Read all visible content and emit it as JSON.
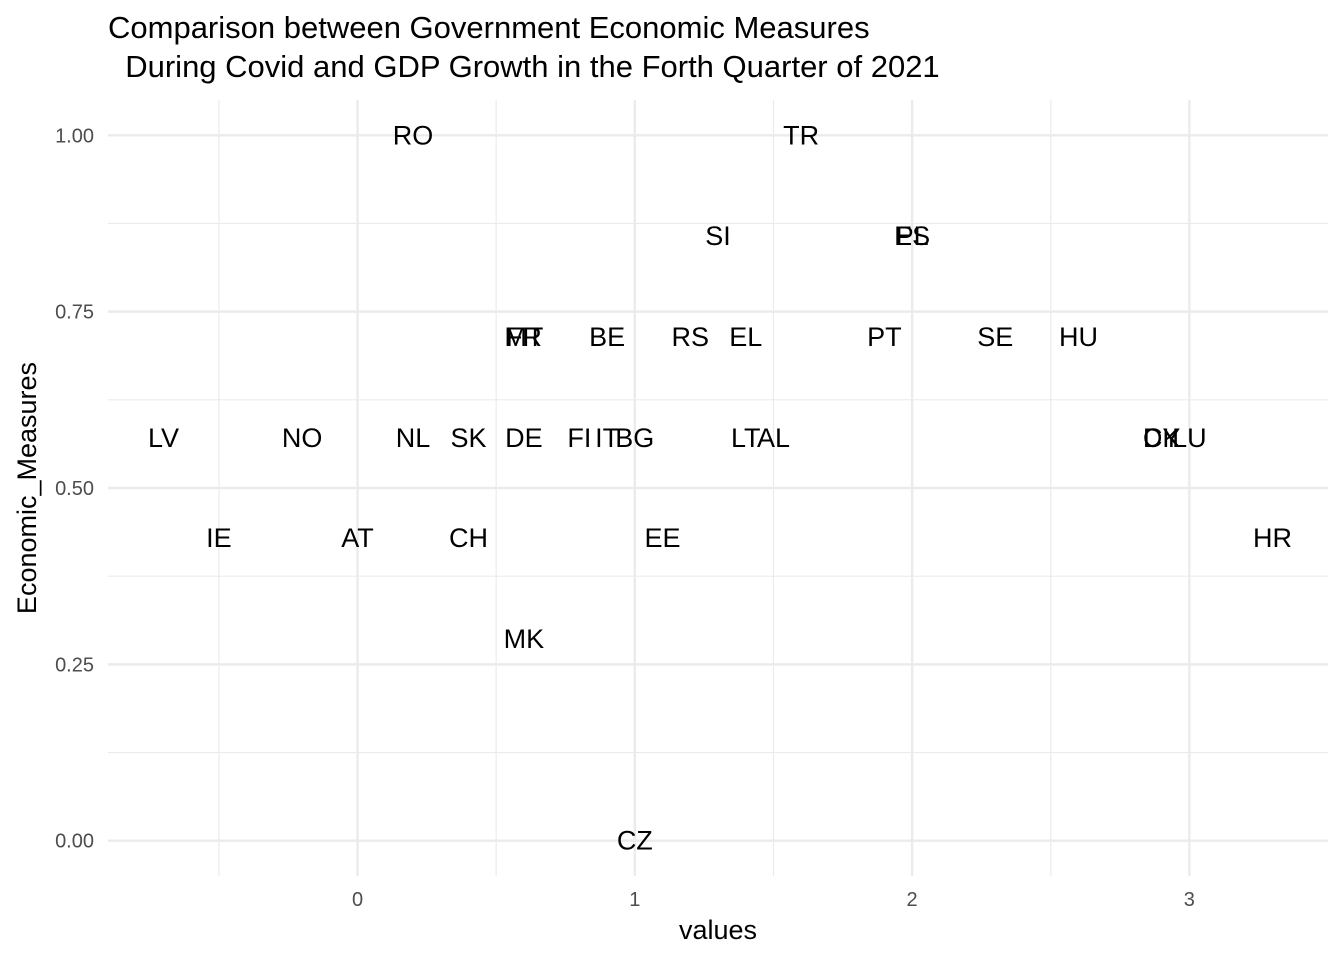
{
  "chart_data": {
    "type": "scatter",
    "title_lines": [
      "Comparison between Government Economic Measures",
      "  During Covid and GDP Growth in the Forth Quarter of 2021"
    ],
    "xlabel": "values",
    "ylabel": "Economic_Measures",
    "xlim": [
      -0.9,
      3.5
    ],
    "ylim": [
      -0.05,
      1.05
    ],
    "x_ticks": [
      0,
      1,
      2,
      3
    ],
    "x_tick_labels": [
      "0",
      "1",
      "2",
      "3"
    ],
    "y_ticks": [
      0,
      0.25,
      0.5,
      0.75,
      1
    ],
    "y_tick_labels": [
      "0.00",
      "0.25",
      "0.50",
      "0.75",
      "1.00"
    ],
    "grid": true,
    "points": [
      {
        "label": "RO",
        "x": 0.2,
        "y": 1.0
      },
      {
        "label": "TR",
        "x": 1.6,
        "y": 1.0
      },
      {
        "label": "SI",
        "x": 1.3,
        "y": 0.857
      },
      {
        "label": "ES",
        "x": 2.0,
        "y": 0.857
      },
      {
        "label": "PL",
        "x": 2.0,
        "y": 0.857
      },
      {
        "label": "FR",
        "x": 0.6,
        "y": 0.714
      },
      {
        "label": "MT",
        "x": 0.6,
        "y": 0.714
      },
      {
        "label": "BE",
        "x": 0.9,
        "y": 0.714
      },
      {
        "label": "RS",
        "x": 1.2,
        "y": 0.714
      },
      {
        "label": "EL",
        "x": 1.4,
        "y": 0.714
      },
      {
        "label": "PT",
        "x": 1.9,
        "y": 0.714
      },
      {
        "label": "SE",
        "x": 2.3,
        "y": 0.714
      },
      {
        "label": "HU",
        "x": 2.6,
        "y": 0.714
      },
      {
        "label": "LV",
        "x": -0.7,
        "y": 0.571
      },
      {
        "label": "NO",
        "x": -0.2,
        "y": 0.571
      },
      {
        "label": "NL",
        "x": 0.2,
        "y": 0.571
      },
      {
        "label": "SK",
        "x": 0.4,
        "y": 0.571
      },
      {
        "label": "DE",
        "x": 0.6,
        "y": 0.571
      },
      {
        "label": "FI",
        "x": 0.8,
        "y": 0.571
      },
      {
        "label": "IT",
        "x": 0.9,
        "y": 0.571
      },
      {
        "label": "BG",
        "x": 1.0,
        "y": 0.571
      },
      {
        "label": "LT",
        "x": 1.4,
        "y": 0.571
      },
      {
        "label": "AL",
        "x": 1.5,
        "y": 0.571
      },
      {
        "label": "DK",
        "x": 2.9,
        "y": 0.571
      },
      {
        "label": "CY",
        "x": 2.9,
        "y": 0.571
      },
      {
        "label": "LU",
        "x": 3.0,
        "y": 0.571
      },
      {
        "label": "IE",
        "x": -0.5,
        "y": 0.429
      },
      {
        "label": "AT",
        "x": 0.0,
        "y": 0.429
      },
      {
        "label": "CH",
        "x": 0.4,
        "y": 0.429
      },
      {
        "label": "EE",
        "x": 1.1,
        "y": 0.429
      },
      {
        "label": "HR",
        "x": 3.3,
        "y": 0.429
      },
      {
        "label": "MK",
        "x": 0.6,
        "y": 0.286
      },
      {
        "label": "CZ",
        "x": 1.0,
        "y": 0.0
      }
    ]
  }
}
